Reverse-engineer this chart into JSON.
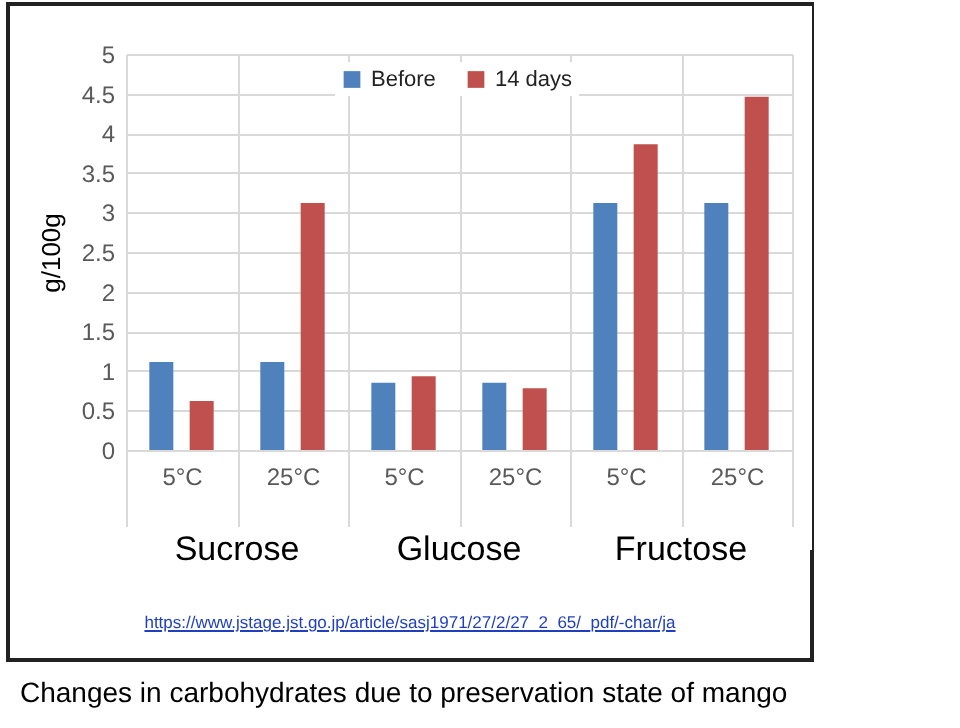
{
  "chart_data": {
    "type": "bar",
    "ylabel": "g/100g",
    "categories": [
      "5°C",
      "25°C",
      "5°C",
      "25°C",
      "5°C",
      "25°C"
    ],
    "series": [
      {
        "name": "Before",
        "color": "#4f81bd",
        "values": [
          1.11,
          1.11,
          0.85,
          0.85,
          3.12,
          3.12
        ]
      },
      {
        "name": "14 days",
        "color": "#c0504d",
        "values": [
          0.62,
          3.12,
          0.93,
          0.78,
          3.86,
          4.46
        ]
      }
    ],
    "ylim": [
      0,
      5
    ],
    "yticks": [
      0,
      0.5,
      1,
      1.5,
      2,
      2.5,
      3,
      3.5,
      4,
      4.5,
      5
    ],
    "grid": true,
    "legend": "top",
    "annotations": [
      "Sucrose",
      "Glucose",
      "Fructose",
      "https://www.jstage.jst.go.jp/article/sasj1971/27/2/27_2_65/_pdf/-char/ja",
      "Changes in carbohydrates due to preservation state of mango"
    ]
  }
}
